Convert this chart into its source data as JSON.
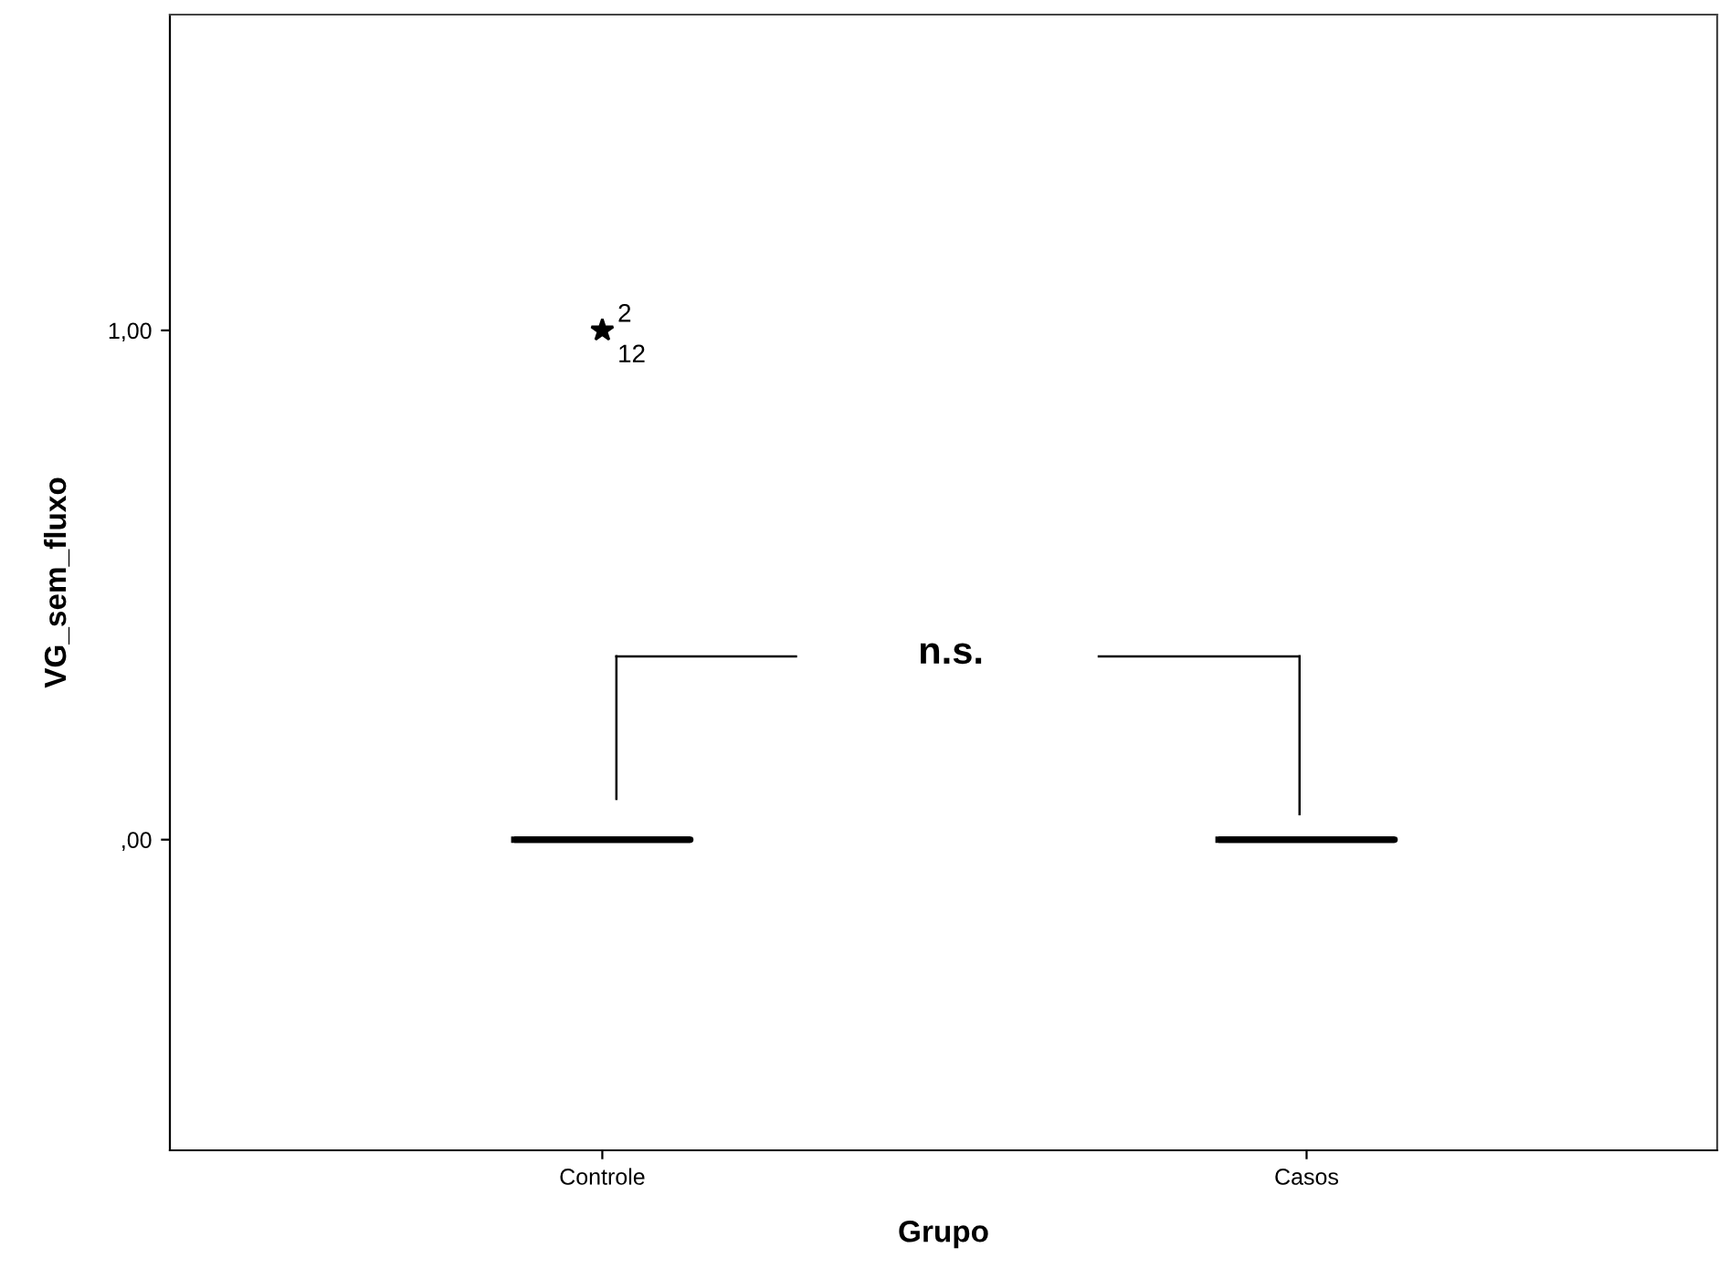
{
  "chart_data": {
    "type": "box",
    "xlabel": "Grupo",
    "ylabel": "VG_sem_fluxo",
    "categories": [
      "Controle",
      "Casos"
    ],
    "boxes": [
      {
        "low": 0,
        "q1": 0,
        "median": 0,
        "q3": 0,
        "high": 0,
        "outliers": [
          1
        ]
      },
      {
        "low": 0,
        "q1": 0,
        "median": 0,
        "q3": 0,
        "high": 0
      }
    ],
    "marker": "star",
    "ylim": [
      -0.61,
      1.62
    ],
    "yticks": [
      {
        "value": 0,
        "label": ",00"
      },
      {
        "value": 1,
        "label": "1,00"
      }
    ],
    "grid": false,
    "annotations": [
      "2",
      "12",
      "n.s."
    ]
  }
}
